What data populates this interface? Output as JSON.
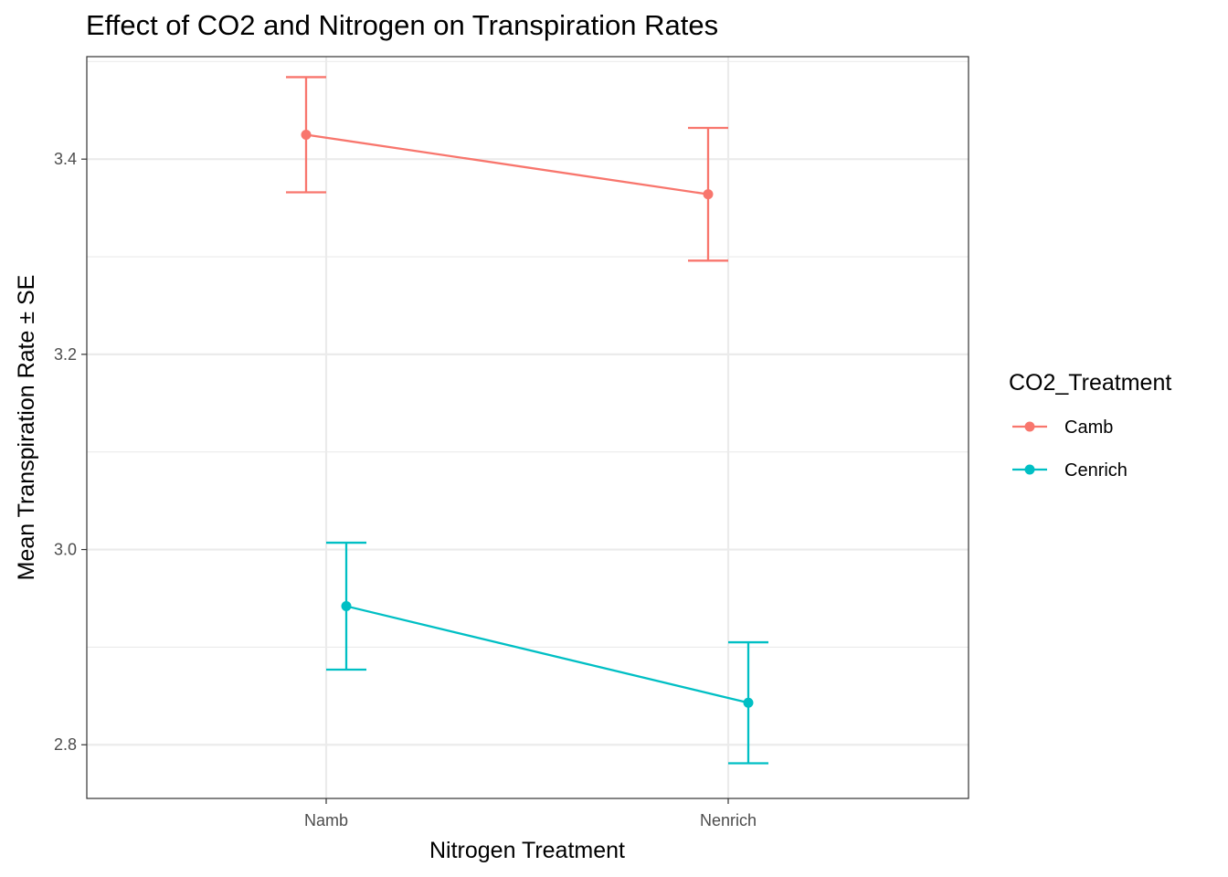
{
  "chart_data": {
    "type": "line",
    "title": "Effect of CO2 and Nitrogen on Transpiration Rates",
    "xlabel": "Nitrogen Treatment",
    "ylabel": "Mean Transpiration Rate ± SE",
    "categories": [
      "Namb",
      "Nenrich"
    ],
    "ylim": [
      2.745,
      3.505
    ],
    "yticks": [
      2.8,
      3.0,
      3.2,
      3.4
    ],
    "ytick_labels": [
      "2.8",
      "3.0",
      "3.2",
      "3.4"
    ],
    "grid": true,
    "legend": {
      "title": "CO2_Treatment",
      "position": "right"
    },
    "series": [
      {
        "name": "Camb",
        "color": "#F8766D",
        "values": [
          3.425,
          3.364
        ],
        "se": [
          0.059,
          0.068
        ]
      },
      {
        "name": "Cenrich",
        "color": "#00BFC4",
        "values": [
          2.942,
          2.843
        ],
        "se": [
          0.065,
          0.062
        ]
      }
    ]
  }
}
